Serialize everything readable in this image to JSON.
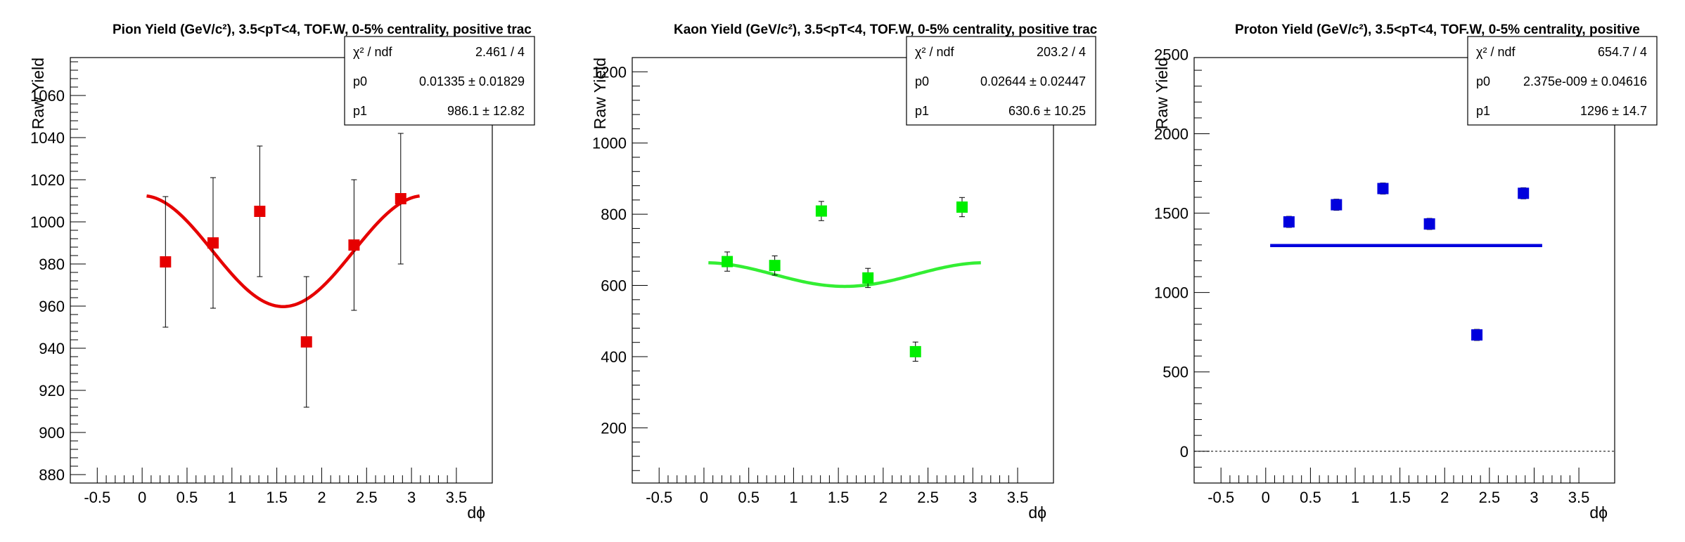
{
  "chart_data": [
    {
      "type": "scatter",
      "title": "Pion Yield (GeV/c²), 3.5<pT<4, TOF.W, 0-5% centrality, positive trac",
      "xlabel": "dϕ",
      "ylabel": "Raw Yield",
      "xlim": [
        -0.8,
        3.9
      ],
      "ylim": [
        876,
        1078
      ],
      "xticks": [
        "-0.5",
        "0",
        "0.5",
        "1",
        "1.5",
        "2",
        "2.5",
        "3",
        "3.5"
      ],
      "yticks": [
        "880",
        "900",
        "920",
        "940",
        "960",
        "980",
        "1000",
        "1020",
        "1040",
        "1060"
      ],
      "marker_color": "#e60000",
      "fit_color": "#e60000",
      "series": [
        {
          "x": [
            0.26,
            0.79,
            1.31,
            1.83,
            2.36,
            2.88
          ],
          "y": [
            981,
            990,
            1005,
            943,
            989,
            1011
          ],
          "yerr": [
            31,
            31,
            31,
            31,
            31,
            31
          ]
        }
      ],
      "fit": {
        "p0": 0.01335,
        "p1": 986.1,
        "xrange": [
          0.05,
          3.09
        ]
      },
      "stats": [
        {
          "label": "χ² / ndf",
          "value": "2.461 / 4"
        },
        {
          "label": "p0",
          "value": "0.01335 ± 0.01829"
        },
        {
          "label": "p1",
          "value": "986.1 ± 12.82"
        }
      ]
    },
    {
      "type": "scatter",
      "title": "Kaon Yield (GeV/c²), 3.5<pT<4, TOF.W, 0-5% centrality, positive trac",
      "xlabel": "dϕ",
      "ylabel": "Raw Yield",
      "xlim": [
        -0.8,
        3.9
      ],
      "ylim": [
        45,
        1240
      ],
      "xticks": [
        "-0.5",
        "0",
        "0.5",
        "1",
        "1.5",
        "2",
        "2.5",
        "3",
        "3.5"
      ],
      "yticks": [
        "200",
        "400",
        "600",
        "800",
        "1000",
        "1200"
      ],
      "marker_color": "#00ee00",
      "fit_color": "#33ee33",
      "series": [
        {
          "x": [
            0.26,
            0.79,
            1.31,
            1.83,
            2.36,
            2.88
          ],
          "y": [
            667,
            656,
            809,
            621,
            414,
            820
          ],
          "yerr": [
            27,
            27,
            27,
            27,
            27,
            27
          ]
        }
      ],
      "fit": {
        "p0": 0.02644,
        "p1": 630.6,
        "xrange": [
          0.05,
          3.09
        ]
      },
      "stats": [
        {
          "label": "χ² / ndf",
          "value": "203.2 / 4"
        },
        {
          "label": "p0",
          "value": "0.02644 ± 0.02447"
        },
        {
          "label": "p1",
          "value": "630.6 ± 10.25"
        }
      ]
    },
    {
      "type": "scatter",
      "title": "Proton Yield (GeV/c²), 3.5<pT<4, TOF.W, 0-5% centrality, positive",
      "xlabel": "dϕ",
      "ylabel": "Raw Yield",
      "xlim": [
        -0.8,
        3.9
      ],
      "ylim": [
        -200,
        2480
      ],
      "xticks": [
        "-0.5",
        "0",
        "0.5",
        "1",
        "1.5",
        "2",
        "2.5",
        "3",
        "3.5"
      ],
      "yticks": [
        "0",
        "500",
        "1000",
        "1500",
        "2000",
        "2500"
      ],
      "marker_color": "#0000dd",
      "fit_color": "#0000dd",
      "zero_line": true,
      "series": [
        {
          "x": [
            0.26,
            0.79,
            1.31,
            1.83,
            2.36,
            2.88
          ],
          "y": [
            1445,
            1553,
            1655,
            1432,
            733,
            1625
          ],
          "yerr": [
            35,
            35,
            35,
            35,
            35,
            35
          ]
        }
      ],
      "fit": {
        "p0": 2.375e-09,
        "p1": 1296,
        "xrange": [
          0.05,
          3.09
        ]
      },
      "stats": [
        {
          "label": "χ² / ndf",
          "value": "654.7 / 4"
        },
        {
          "label": "p0",
          "value": "2.375e-009 ± 0.04616"
        },
        {
          "label": "p1",
          "value": "1296 ± 14.7"
        }
      ]
    }
  ]
}
